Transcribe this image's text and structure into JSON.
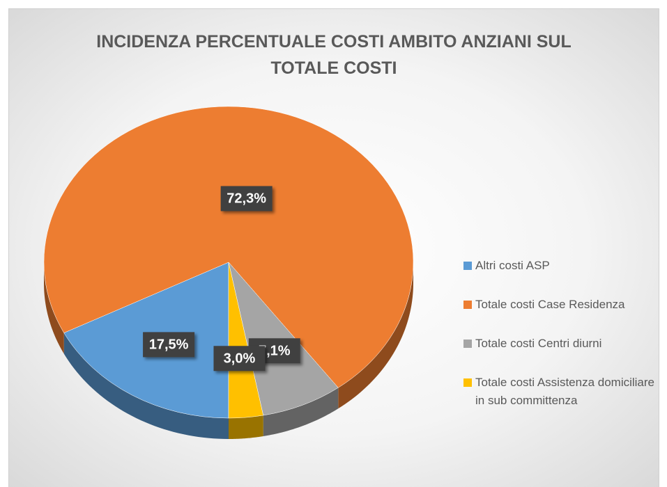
{
  "chart_data": {
    "type": "pie",
    "title": "INCIDENZA PERCENTUALE COSTI AMBITO ANZIANI SUL TOTALE COSTI",
    "categories": [
      "Altri costi ASP",
      "Totale costi Case Residenza",
      "Totale costi Centri diurni",
      "Totale costi Assistenza domiciliare in sub committenza"
    ],
    "values": [
      17.5,
      72.3,
      7.1,
      3.0
    ],
    "value_labels": [
      "17,5%",
      "72,3%",
      "7,1%",
      "3,0%"
    ],
    "colors": [
      "#5b9bd5",
      "#ed7d31",
      "#a5a5a5",
      "#ffc000"
    ],
    "start_angle": 180,
    "legend": "right"
  }
}
